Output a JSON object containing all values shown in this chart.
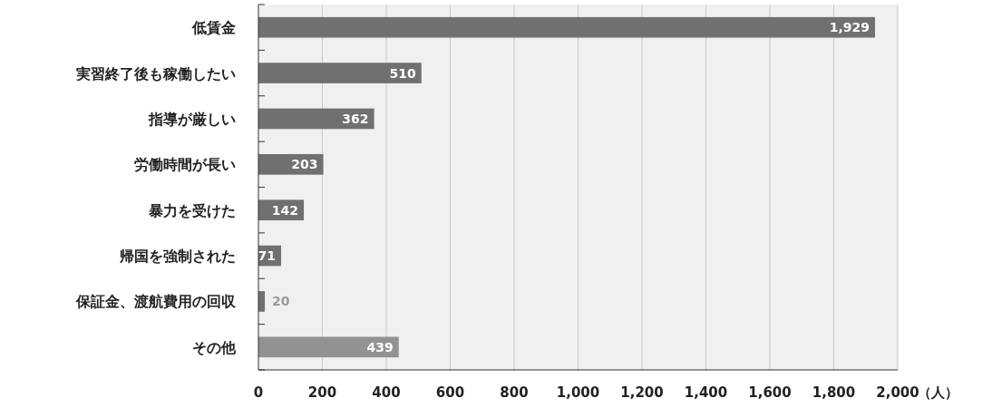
{
  "chart_data": {
    "type": "bar",
    "orientation": "horizontal",
    "categories": [
      "低賃金",
      "実習終了後も稼働したい",
      "指導が厳しい",
      "労働時間が長い",
      "暴力を受けた",
      "帰国を強制された",
      "保証金、渡航費用の回収",
      "その他"
    ],
    "values": [
      1929,
      510,
      362,
      203,
      142,
      71,
      20,
      439
    ],
    "colors": [
      "#707070",
      "#707070",
      "#707070",
      "#707070",
      "#707070",
      "#707070",
      "#707070",
      "#929292"
    ],
    "value_labels": [
      "1,929",
      "510",
      "362",
      "203",
      "142",
      "71",
      "20",
      "439"
    ],
    "xlim": [
      0,
      2000
    ],
    "xticks": [
      0,
      200,
      400,
      600,
      800,
      {
        "value": 1000,
        "label": "1,000"
      },
      {
        "value": 1200,
        "label": "1,200"
      },
      {
        "value": 1400,
        "label": "1,400"
      },
      {
        "value": 1600,
        "label": "1,600"
      },
      {
        "value": 1800,
        "label": "1,800"
      },
      {
        "value": 2000,
        "label": "2,000"
      }
    ],
    "xlabel": "（人）",
    "grid": "x"
  }
}
